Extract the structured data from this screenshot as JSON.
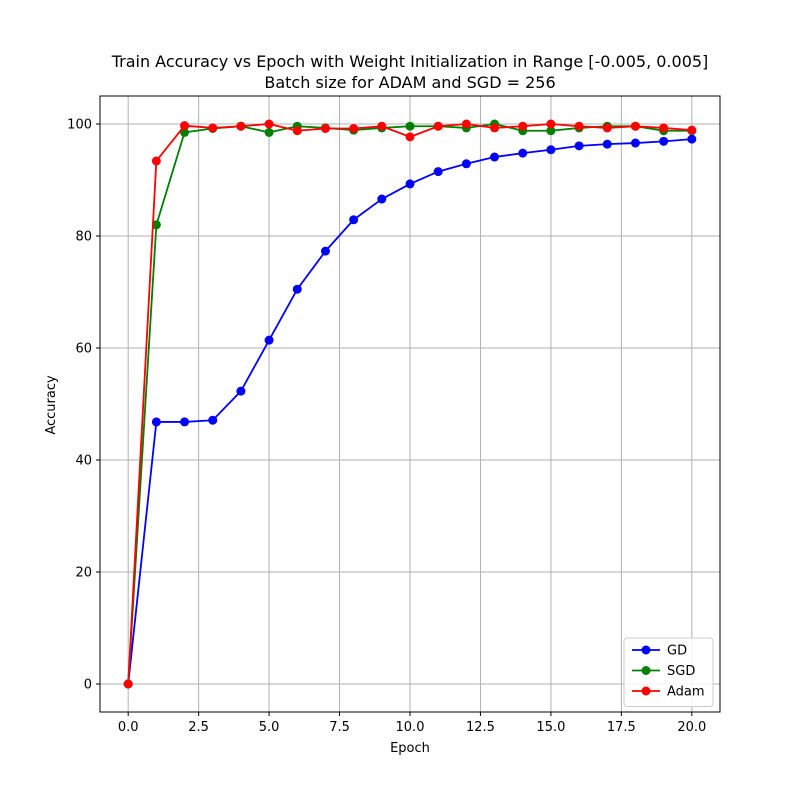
{
  "chart_data": {
    "type": "line",
    "title": "Train Accuracy vs Epoch with Weight Initialization in Range [-0.005, 0.005]",
    "subtitle": "Batch size for ADAM and SGD = 256",
    "xlabel": "Epoch",
    "ylabel": "Accuracy",
    "xlim": [
      -1.0,
      21.0
    ],
    "ylim": [
      -5,
      105
    ],
    "xticks": [
      0.0,
      2.5,
      5.0,
      7.5,
      10.0,
      12.5,
      15.0,
      17.5,
      20.0
    ],
    "xtick_labels": [
      "0.0",
      "2.5",
      "5.0",
      "7.5",
      "10.0",
      "12.5",
      "15.0",
      "17.5",
      "20.0"
    ],
    "yticks": [
      0,
      20,
      40,
      60,
      80,
      100
    ],
    "ytick_labels": [
      "0",
      "20",
      "40",
      "60",
      "80",
      "100"
    ],
    "grid": true,
    "legend_position": "lower-right",
    "x": [
      0,
      1,
      2,
      3,
      4,
      5,
      6,
      7,
      8,
      9,
      10,
      11,
      12,
      13,
      14,
      15,
      16,
      17,
      18,
      19,
      20
    ],
    "series": [
      {
        "name": "GD",
        "color": "#0000ff",
        "values": [
          0,
          46.8,
          46.8,
          47.1,
          52.3,
          61.4,
          70.5,
          77.3,
          82.9,
          86.6,
          89.3,
          91.5,
          92.9,
          94.1,
          94.8,
          95.4,
          96.1,
          96.4,
          96.6,
          96.9,
          97.3
        ]
      },
      {
        "name": "SGD",
        "color": "#008000",
        "values": [
          0,
          82.0,
          98.5,
          99.2,
          99.6,
          98.5,
          99.6,
          99.3,
          98.9,
          99.3,
          99.6,
          99.6,
          99.3,
          100.0,
          98.8,
          98.8,
          99.3,
          99.6,
          99.6,
          98.8,
          98.8
        ]
      },
      {
        "name": "Adam",
        "color": "#ff0000",
        "values": [
          0,
          93.4,
          99.7,
          99.3,
          99.6,
          100.0,
          98.8,
          99.2,
          99.2,
          99.6,
          97.7,
          99.6,
          100.0,
          99.3,
          99.6,
          100.0,
          99.6,
          99.3,
          99.6,
          99.3,
          98.9
        ]
      }
    ]
  }
}
